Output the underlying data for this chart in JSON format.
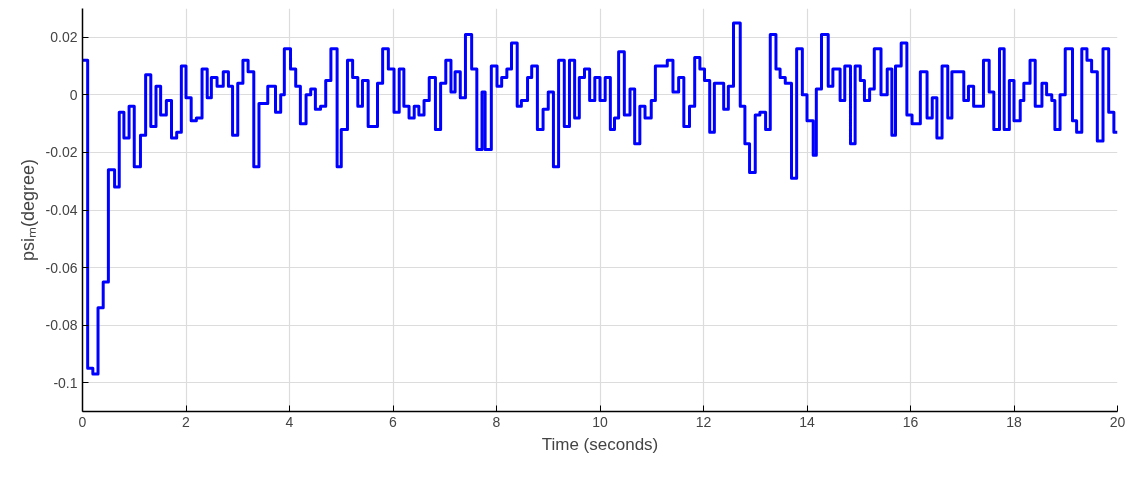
{
  "chart_data": {
    "type": "step",
    "xlabel": "Time (seconds)",
    "ylabel": "psiₘ(degree)",
    "xlim": [
      0,
      20
    ],
    "ylim": [
      -0.11,
      0.03
    ],
    "xticks": [
      0,
      2,
      4,
      6,
      8,
      10,
      12,
      14,
      16,
      18,
      20
    ],
    "yticks": [
      -0.1,
      -0.08,
      -0.06,
      -0.04,
      -0.02,
      0,
      0.02
    ],
    "grid": true,
    "marker": "none",
    "line_style": "solid",
    "series": [
      {
        "color": "#0000ff",
        "x": [
          0,
          0.1,
          0.2,
          0.3,
          0.4,
          0.5,
          0.62,
          0.71,
          0.8,
          0.9,
          1.0,
          1.12,
          1.22,
          1.32,
          1.42,
          1.51,
          1.62,
          1.72,
          1.82,
          1.91,
          2.0,
          2.1,
          2.2,
          2.31,
          2.41,
          2.49,
          2.6,
          2.72,
          2.82,
          2.9,
          3.0,
          3.1,
          3.2,
          3.31,
          3.41,
          3.58,
          3.73,
          3.83,
          3.9,
          4.02,
          4.12,
          4.21,
          4.32,
          4.41,
          4.5,
          4.6,
          4.7,
          4.8,
          4.92,
          5.0,
          5.12,
          5.22,
          5.32,
          5.41,
          5.52,
          5.7,
          5.8,
          5.91,
          6.02,
          6.12,
          6.21,
          6.31,
          6.41,
          6.5,
          6.6,
          6.7,
          6.82,
          6.92,
          7.02,
          7.12,
          7.2,
          7.3,
          7.4,
          7.52,
          7.62,
          7.72,
          7.78,
          7.9,
          8.01,
          8.1,
          8.2,
          8.29,
          8.4,
          8.48,
          8.6,
          8.68,
          8.79,
          8.9,
          9.0,
          9.1,
          9.2,
          9.31,
          9.41,
          9.51,
          9.6,
          9.7,
          9.8,
          9.9,
          10.0,
          10.1,
          10.2,
          10.28,
          10.36,
          10.47,
          10.58,
          10.67,
          10.77,
          10.87,
          10.99,
          11.07,
          11.3,
          11.41,
          11.52,
          11.62,
          11.73,
          11.83,
          11.93,
          12.02,
          12.12,
          12.21,
          12.39,
          12.48,
          12.58,
          12.71,
          12.8,
          12.89,
          13.0,
          13.09,
          13.2,
          13.29,
          13.4,
          13.48,
          13.58,
          13.7,
          13.8,
          13.91,
          14.0,
          14.12,
          14.18,
          14.28,
          14.41,
          14.5,
          14.64,
          14.73,
          14.84,
          14.93,
          15.03,
          15.11,
          15.21,
          15.3,
          15.43,
          15.55,
          15.64,
          15.71,
          15.82,
          15.93,
          16.03,
          16.19,
          16.32,
          16.42,
          16.51,
          16.61,
          16.72,
          16.8,
          17.03,
          17.12,
          17.22,
          17.41,
          17.52,
          17.61,
          17.72,
          17.81,
          17.91,
          18.0,
          18.12,
          18.19,
          18.31,
          18.41,
          18.54,
          18.63,
          18.73,
          18.79,
          18.89,
          18.99,
          19.13,
          19.21,
          19.31,
          19.41,
          19.5,
          19.61,
          19.72,
          19.83,
          19.93,
          20
        ],
        "values": [
          0.012,
          -0.095,
          -0.097,
          -0.074,
          -0.065,
          -0.026,
          -0.032,
          -0.006,
          -0.015,
          -0.004,
          -0.025,
          -0.014,
          0.007,
          -0.011,
          0.003,
          -0.007,
          -0.002,
          -0.015,
          -0.013,
          0.01,
          -0.001,
          -0.009,
          -0.008,
          0.009,
          -0.001,
          0.006,
          0.003,
          0.008,
          0.003,
          -0.014,
          0.004,
          0.012,
          0.008,
          -0.025,
          -0.003,
          0.003,
          -0.006,
          0.0,
          0.016,
          0.009,
          0.003,
          -0.01,
          0.0,
          0.002,
          -0.005,
          -0.004,
          0.005,
          0.016,
          -0.025,
          -0.012,
          0.012,
          0.006,
          -0.004,
          0.005,
          -0.011,
          0.004,
          0.016,
          0.009,
          -0.006,
          0.009,
          -0.004,
          -0.008,
          -0.004,
          -0.007,
          -0.002,
          0.006,
          -0.012,
          0.004,
          0.012,
          0.001,
          0.008,
          -0.001,
          0.021,
          0.009,
          -0.019,
          0.001,
          -0.019,
          0.01,
          0.003,
          0.006,
          0.009,
          0.018,
          -0.004,
          -0.002,
          0.006,
          0.01,
          -0.012,
          -0.005,
          0.001,
          -0.025,
          0.012,
          -0.011,
          0.012,
          -0.008,
          0.006,
          0.009,
          -0.002,
          0.006,
          -0.002,
          0.006,
          -0.012,
          -0.008,
          0.015,
          -0.007,
          0.002,
          -0.017,
          -0.004,
          -0.008,
          -0.002,
          0.01,
          0.012,
          0.001,
          0.006,
          -0.011,
          -0.004,
          0.013,
          0.009,
          0.005,
          -0.013,
          0.004,
          -0.005,
          0.003,
          0.025,
          -0.004,
          -0.017,
          -0.027,
          -0.007,
          -0.006,
          -0.012,
          0.021,
          0.009,
          0.006,
          0.004,
          -0.029,
          0.016,
          0.0,
          -0.009,
          -0.021,
          0.002,
          0.021,
          0.003,
          0.009,
          -0.002,
          0.01,
          -0.017,
          0.01,
          0.005,
          -0.002,
          0.002,
          0.016,
          0.0,
          0.009,
          -0.014,
          0.01,
          0.018,
          -0.007,
          -0.01,
          0.008,
          -0.008,
          -0.001,
          -0.015,
          0.01,
          -0.008,
          0.008,
          -0.002,
          0.003,
          -0.004,
          0.012,
          0.001,
          -0.012,
          0.016,
          -0.012,
          0.005,
          -0.009,
          -0.002,
          0.004,
          0.012,
          -0.004,
          0.004,
          0.0,
          -0.002,
          -0.012,
          0.0,
          0.016,
          -0.009,
          -0.013,
          0.016,
          0.012,
          0.008,
          -0.016,
          0.016,
          -0.006,
          -0.013,
          -0.013
        ]
      }
    ]
  }
}
